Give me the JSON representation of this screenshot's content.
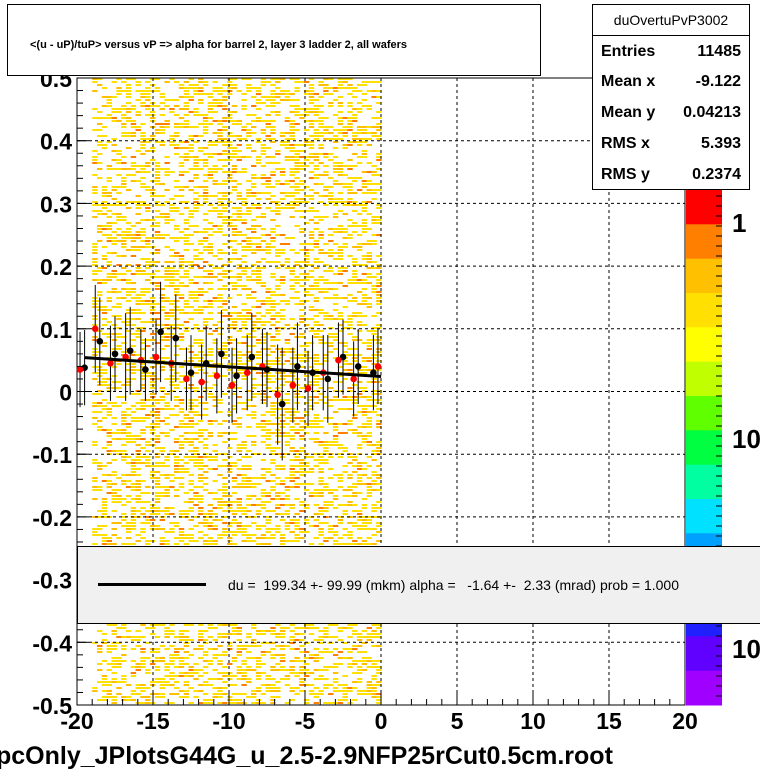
{
  "title": "<(u - uP)/tuP> versus   vP => alpha for barrel 2, layer 3 ladder 2, all wafers",
  "stats": {
    "name": "duOvertuPvP3002",
    "rows": [
      {
        "label": "Entries",
        "value": "11485"
      },
      {
        "label": "Mean x",
        "value": "-9.122"
      },
      {
        "label": "Mean y",
        "value": "0.04213"
      },
      {
        "label": "RMS x",
        "value": "5.393"
      },
      {
        "label": "RMS y",
        "value": "0.2374"
      }
    ]
  },
  "fit_legend": "du =  199.34 +- 99.99 (mkm) alpha =   -1.64 +-  2.33 (mrad) prob = 1.000",
  "file_label": "pcOnly_JPlotsG44G_u_2.5-2.9NFP25rCut0.5cm.root",
  "colorbar": {
    "labels": [
      "1",
      "10",
      "10"
    ]
  },
  "chart_data": {
    "type": "scatter",
    "xlim": [
      -20,
      20
    ],
    "ylim": [
      -0.5,
      0.5
    ],
    "x_ticks": [
      "-20",
      "-15",
      "-10",
      "-5",
      "0",
      "5",
      "10",
      "15",
      "20"
    ],
    "y_ticks": [
      "-0.5",
      "-0.4",
      "-0.3",
      "-0.2",
      "-0.1",
      "0",
      "0.1",
      "0.2",
      "0.3",
      "0.4",
      "0.5"
    ],
    "grid": true,
    "colors": {
      "black_points": "#000000",
      "red_points": "#ff0000",
      "heat_low": "#ffe000",
      "heat_high": "#ff8000"
    },
    "series": [
      {
        "points": [
          {
            "x": -19.5,
            "y": 0.038,
            "err": 0.06
          },
          {
            "x": -18.5,
            "y": 0.08,
            "err": 0.07
          },
          {
            "x": -17.5,
            "y": 0.06,
            "err": 0.06
          },
          {
            "x": -16.5,
            "y": 0.065,
            "err": 0.07
          },
          {
            "x": -15.5,
            "y": 0.035,
            "err": 0.05
          },
          {
            "x": -14.5,
            "y": 0.095,
            "err": 0.08
          },
          {
            "x": -13.5,
            "y": 0.085,
            "err": 0.07
          },
          {
            "x": -12.5,
            "y": 0.03,
            "err": 0.06
          },
          {
            "x": -11.5,
            "y": 0.045,
            "err": 0.06
          },
          {
            "x": -10.5,
            "y": 0.06,
            "err": 0.07
          },
          {
            "x": -9.5,
            "y": 0.025,
            "err": 0.06
          },
          {
            "x": -8.5,
            "y": 0.055,
            "err": 0.07
          },
          {
            "x": -7.5,
            "y": 0.035,
            "err": 0.06
          },
          {
            "x": -6.5,
            "y": -0.02,
            "err": 0.09
          },
          {
            "x": -5.5,
            "y": 0.04,
            "err": 0.07
          },
          {
            "x": -4.5,
            "y": 0.03,
            "err": 0.06
          },
          {
            "x": -3.5,
            "y": 0.02,
            "err": 0.07
          },
          {
            "x": -2.5,
            "y": 0.055,
            "err": 0.06
          },
          {
            "x": -1.5,
            "y": 0.04,
            "err": 0.06
          },
          {
            "x": -0.5,
            "y": 0.03,
            "err": 0.06
          }
        ]
      },
      {
        "points": [
          {
            "x": -19.8,
            "y": 0.035,
            "err": 0.06
          },
          {
            "x": -18.8,
            "y": 0.1,
            "err": 0.07
          },
          {
            "x": -17.8,
            "y": 0.045,
            "err": 0.06
          },
          {
            "x": -16.8,
            "y": 0.055,
            "err": 0.07
          },
          {
            "x": -15.8,
            "y": 0.05,
            "err": 0.05
          },
          {
            "x": -14.8,
            "y": 0.055,
            "err": 0.06
          },
          {
            "x": -13.8,
            "y": 0.045,
            "err": 0.06
          },
          {
            "x": -12.8,
            "y": 0.02,
            "err": 0.05
          },
          {
            "x": -11.8,
            "y": 0.015,
            "err": 0.06
          },
          {
            "x": -10.8,
            "y": 0.025,
            "err": 0.06
          },
          {
            "x": -9.8,
            "y": 0.01,
            "err": 0.06
          },
          {
            "x": -8.8,
            "y": 0.03,
            "err": 0.06
          },
          {
            "x": -7.8,
            "y": 0.04,
            "err": 0.06
          },
          {
            "x": -6.8,
            "y": -0.005,
            "err": 0.08
          },
          {
            "x": -5.8,
            "y": 0.01,
            "err": 0.06
          },
          {
            "x": -4.8,
            "y": 0.005,
            "err": 0.06
          },
          {
            "x": -3.8,
            "y": 0.03,
            "err": 0.06
          },
          {
            "x": -2.8,
            "y": 0.05,
            "err": 0.06
          },
          {
            "x": -1.8,
            "y": 0.02,
            "err": 0.06
          },
          {
            "x": -0.2,
            "y": 0.04,
            "err": 0.06
          }
        ]
      }
    ],
    "fit_line": {
      "x": [
        -19.5,
        0
      ],
      "y": [
        0.054,
        0.024
      ]
    }
  }
}
